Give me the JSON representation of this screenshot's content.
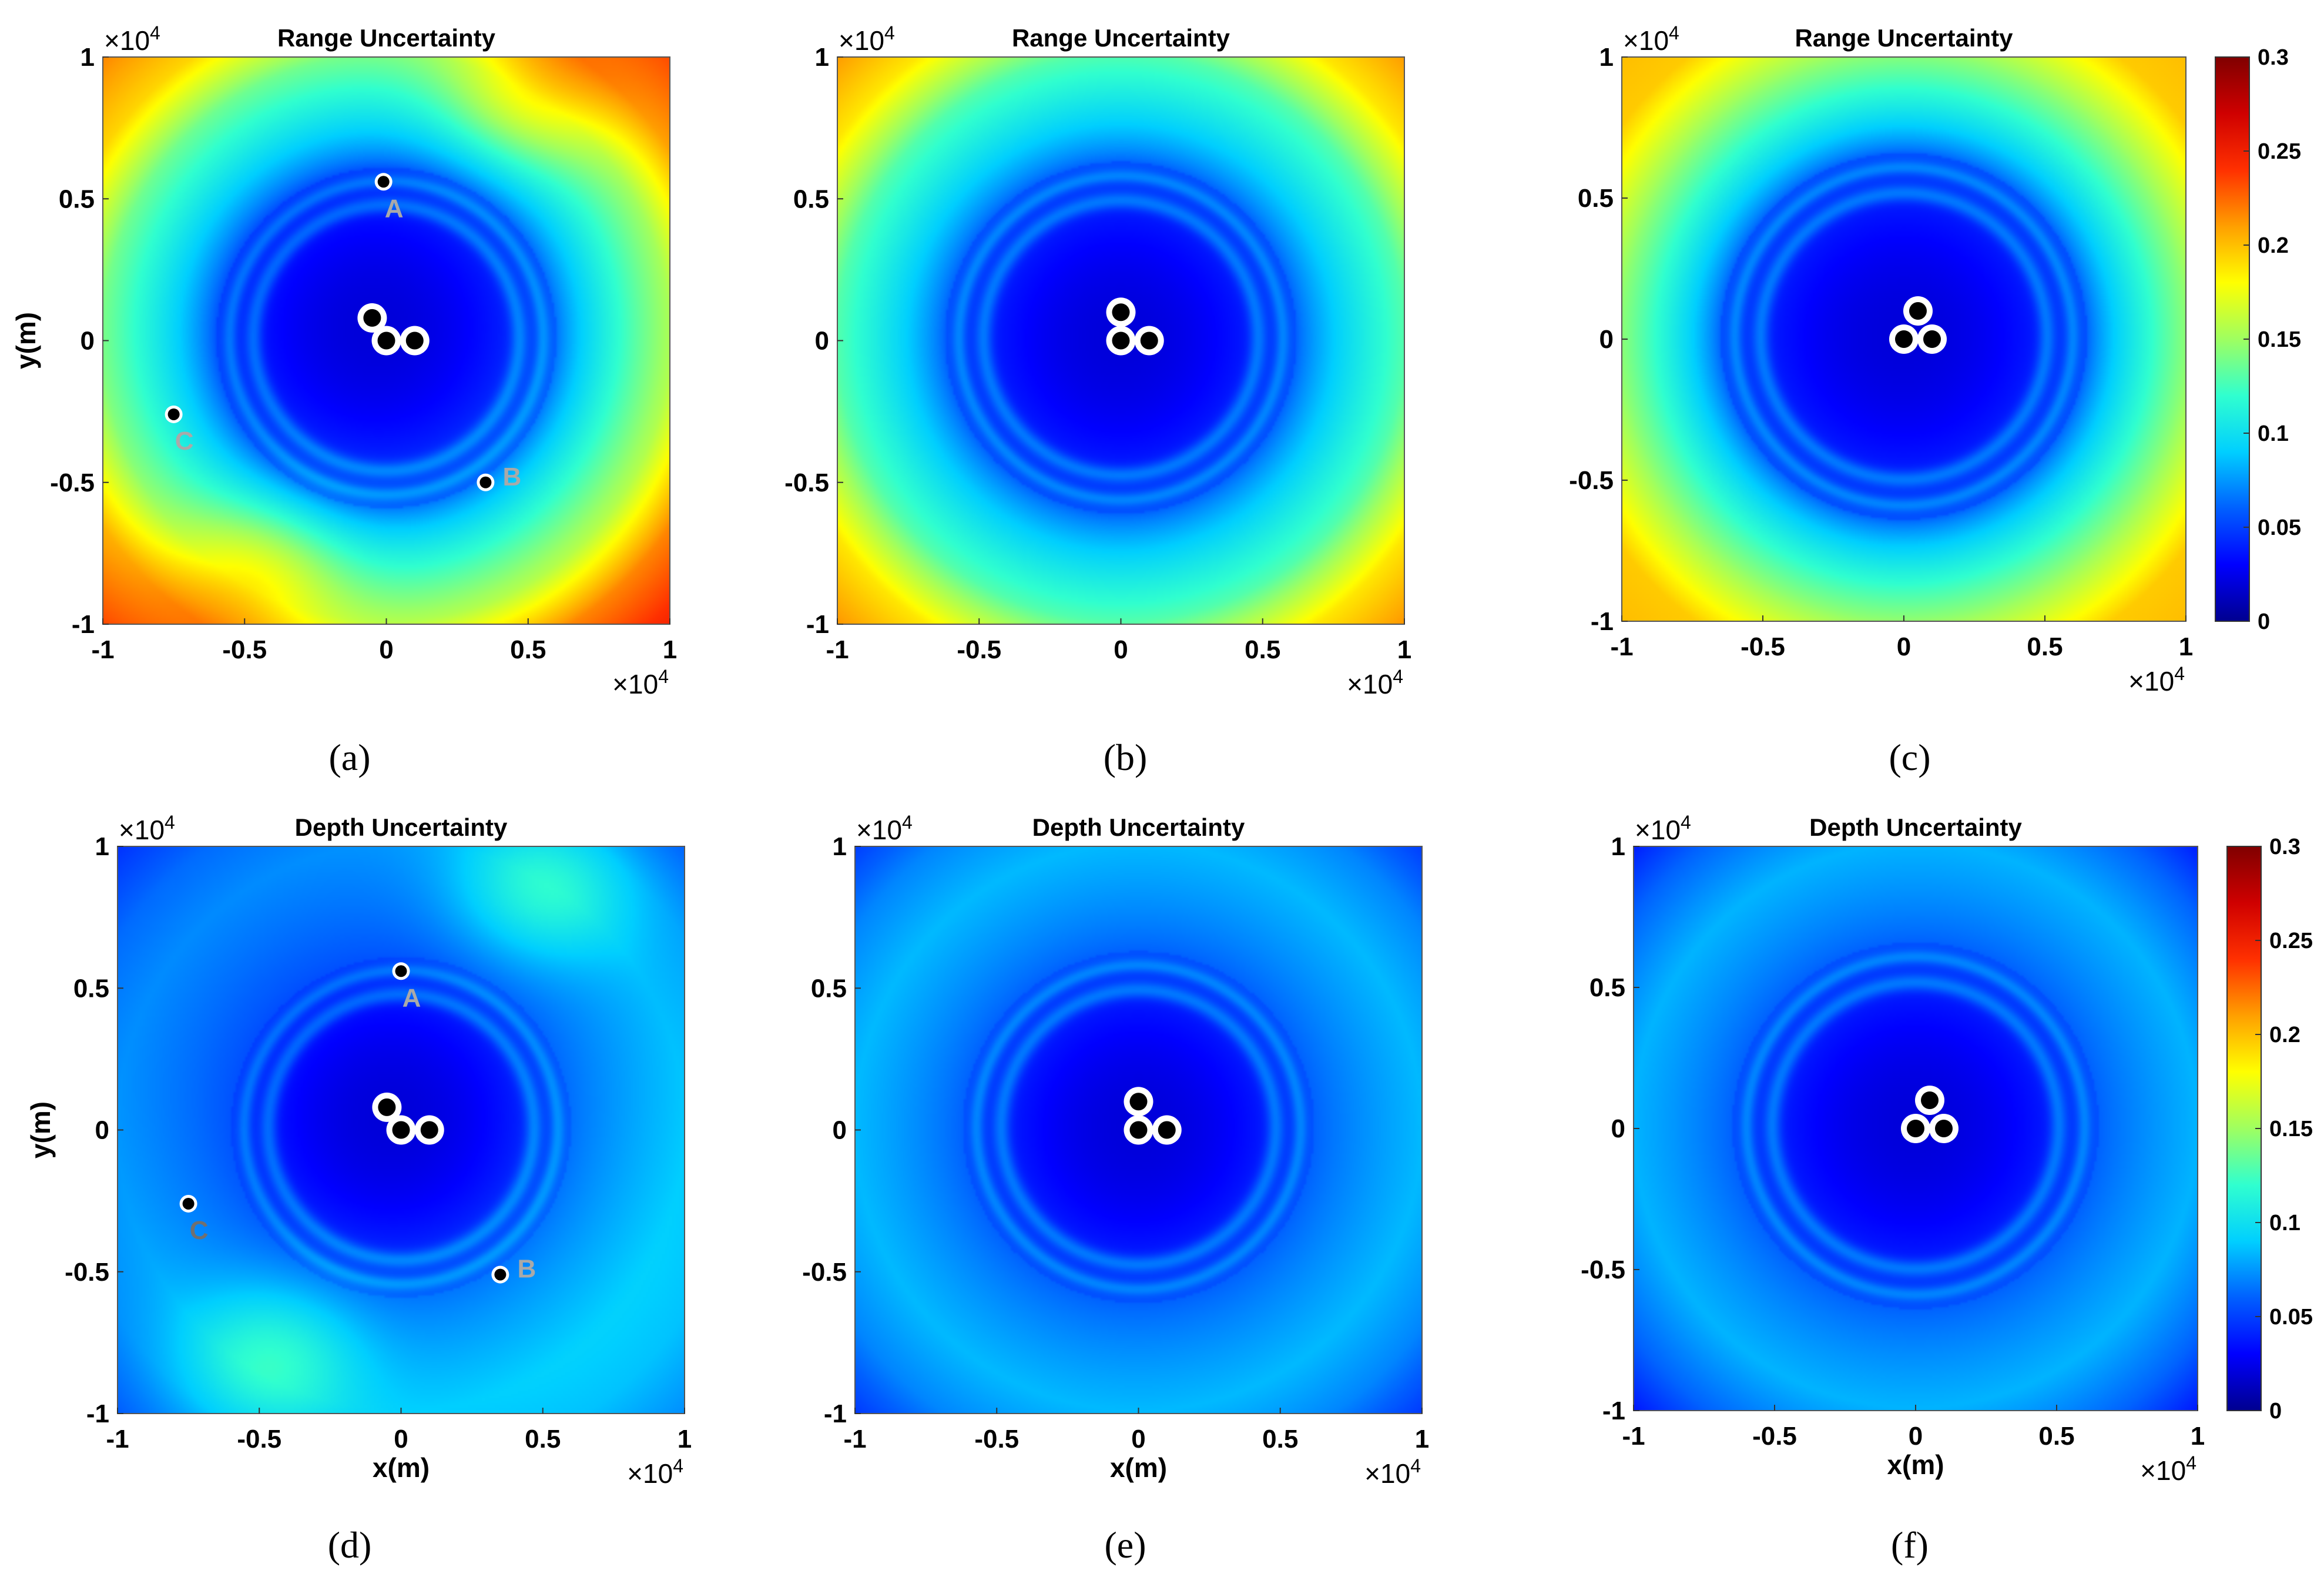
{
  "figure": {
    "colormap": [
      "#00008f",
      "#0000ff",
      "#0060ff",
      "#00cfff",
      "#30ffcf",
      "#9fff60",
      "#ffff00",
      "#ff9f00",
      "#ff3000",
      "#cf0000",
      "#800000"
    ],
    "colors": {
      "frame": "#000000",
      "marker_fill": "#000000",
      "marker_ring": "#ffffff",
      "label_a": "#a9a9a9",
      "label_c": "#707070"
    }
  },
  "chart_data": [
    {
      "type": "heatmap",
      "panel": "a",
      "caption": "(a)",
      "title": "Range Uncertainty",
      "xlabel": "",
      "ylabel": "y(m)",
      "xlim": [
        -10000,
        10000
      ],
      "ylim": [
        -10000,
        10000
      ],
      "x_ticks": [
        -1,
        -0.5,
        0,
        0.5,
        1
      ],
      "x_tick_labels": [
        "-1",
        "-0.5",
        "0",
        "0.5",
        "1"
      ],
      "y_ticks": [
        -1,
        -0.5,
        0,
        0.5,
        1
      ],
      "y_tick_labels": [
        "-1",
        "-0.5",
        "0",
        "0.5",
        "1"
      ],
      "x_multiplier": "×10",
      "x_exponent": "4",
      "y_multiplier": "×10",
      "y_exponent": "4",
      "color_range": [
        0,
        0.3
      ],
      "field": {
        "outer": 0.18,
        "corner": 0.23,
        "core": 0.02,
        "core_radius": 6000,
        "asym": true
      },
      "sensors": [
        [
          -500,
          800
        ],
        [
          0,
          0
        ],
        [
          1000,
          0
        ]
      ],
      "points": [
        {
          "name": "A",
          "x": -100,
          "y": 5600,
          "label": "A"
        },
        {
          "name": "B",
          "x": 3500,
          "y": -5000,
          "label": "B"
        },
        {
          "name": "C",
          "x": -7500,
          "y": -2600,
          "label": "C"
        }
      ]
    },
    {
      "type": "heatmap",
      "panel": "b",
      "caption": "(b)",
      "title": "Range Uncertainty",
      "xlabel": "",
      "ylabel": "",
      "xlim": [
        -10000,
        10000
      ],
      "ylim": [
        -10000,
        10000
      ],
      "x_ticks": [
        -1,
        -0.5,
        0,
        0.5,
        1
      ],
      "x_tick_labels": [
        "-1",
        "-0.5",
        "0",
        "0.5",
        "1"
      ],
      "y_ticks": [
        -1,
        -0.5,
        0,
        0.5,
        1
      ],
      "y_tick_labels": [
        "-1",
        "-0.5",
        "0",
        "0.5",
        "1"
      ],
      "x_multiplier": "×10",
      "x_exponent": "4",
      "y_multiplier": "×10",
      "y_exponent": "4",
      "color_range": [
        0,
        0.3
      ],
      "field": {
        "outer": 0.16,
        "corner": 0.21,
        "core": 0.02,
        "core_radius": 6200,
        "asym": false
      },
      "sensors": [
        [
          0,
          1000
        ],
        [
          0,
          0
        ],
        [
          1000,
          0
        ]
      ],
      "points": []
    },
    {
      "type": "heatmap",
      "panel": "c",
      "caption": "(c)",
      "title": "Range Uncertainty",
      "xlabel": "",
      "ylabel": "",
      "xlim": [
        -10000,
        10000
      ],
      "ylim": [
        -10000,
        10000
      ],
      "x_ticks": [
        -1,
        -0.5,
        0,
        0.5,
        1
      ],
      "x_tick_labels": [
        "-1",
        "-0.5",
        "0",
        "0.5",
        "1"
      ],
      "y_ticks": [
        -1,
        -0.5,
        0,
        0.5,
        1
      ],
      "y_tick_labels": [
        "-1",
        "-0.5",
        "0",
        "0.5",
        "1"
      ],
      "x_multiplier": "×10",
      "x_exponent": "4",
      "y_multiplier": "×10",
      "y_exponent": "4",
      "color_range": [
        0,
        0.3
      ],
      "field": {
        "outer": 0.19,
        "corner": 0.2,
        "core": 0.02,
        "core_radius": 6500,
        "asym": false
      },
      "sensors": [
        [
          500,
          1000
        ],
        [
          0,
          0
        ],
        [
          1000,
          0
        ]
      ],
      "points": [],
      "colorbar": {
        "ticks": [
          0,
          0.05,
          0.1,
          0.15,
          0.2,
          0.25,
          0.3
        ],
        "tick_labels": [
          "0",
          "0.05",
          "0.1",
          "0.15",
          "0.2",
          "0.25",
          "0.3"
        ]
      }
    },
    {
      "type": "heatmap",
      "panel": "d",
      "caption": "(d)",
      "title": "Depth Uncertainty",
      "xlabel": "x(m)",
      "ylabel": "y(m)",
      "xlim": [
        -10000,
        10000
      ],
      "ylim": [
        -10000,
        10000
      ],
      "x_ticks": [
        -1,
        -0.5,
        0,
        0.5,
        1
      ],
      "x_tick_labels": [
        "-1",
        "-0.5",
        "0",
        "0.5",
        "1"
      ],
      "y_ticks": [
        -1,
        -0.5,
        0,
        0.5,
        1
      ],
      "y_tick_labels": [
        "-1",
        "-0.5",
        "0",
        "0.5",
        "1"
      ],
      "x_multiplier": "×10",
      "x_exponent": "4",
      "y_multiplier": "×10",
      "y_exponent": "4",
      "color_range": [
        0,
        0.3
      ],
      "field": {
        "outer": 0.09,
        "corner": 0.06,
        "core": 0.02,
        "core_radius": 6000,
        "asym": true
      },
      "sensors": [
        [
          -500,
          800
        ],
        [
          0,
          0
        ],
        [
          1000,
          0
        ]
      ],
      "points": [
        {
          "name": "A",
          "x": 0,
          "y": 5600,
          "label": "A"
        },
        {
          "name": "B",
          "x": 3500,
          "y": -5100,
          "label": "B"
        },
        {
          "name": "C",
          "x": -7500,
          "y": -2600,
          "label": "C"
        }
      ]
    },
    {
      "type": "heatmap",
      "panel": "e",
      "caption": "(e)",
      "title": "Depth Uncertainty",
      "xlabel": "x(m)",
      "ylabel": "",
      "xlim": [
        -10000,
        10000
      ],
      "ylim": [
        -10000,
        10000
      ],
      "x_ticks": [
        -1,
        -0.5,
        0,
        0.5,
        1
      ],
      "x_tick_labels": [
        "-1",
        "-0.5",
        "0",
        "0.5",
        "1"
      ],
      "y_ticks": [
        -1,
        -0.5,
        0,
        0.5,
        1
      ],
      "y_tick_labels": [
        "-1",
        "-0.5",
        "0",
        "0.5",
        "1"
      ],
      "x_multiplier": "×10",
      "x_exponent": "4",
      "y_multiplier": "×10",
      "y_exponent": "4",
      "color_range": [
        0,
        0.3
      ],
      "field": {
        "outer": 0.095,
        "corner": 0.05,
        "core": 0.02,
        "core_radius": 6200,
        "asym": false
      },
      "sensors": [
        [
          0,
          1000
        ],
        [
          0,
          0
        ],
        [
          1000,
          0
        ]
      ],
      "points": []
    },
    {
      "type": "heatmap",
      "panel": "f",
      "caption": "(f)",
      "title": "Depth Uncertainty",
      "xlabel": "x(m)",
      "ylabel": "",
      "xlim": [
        -10000,
        10000
      ],
      "ylim": [
        -10000,
        10000
      ],
      "x_ticks": [
        -1,
        -0.5,
        0,
        0.5,
        1
      ],
      "x_tick_labels": [
        "-1",
        "-0.5",
        "0",
        "0.5",
        "1"
      ],
      "y_ticks": [
        -1,
        -0.5,
        0,
        0.5,
        1
      ],
      "y_tick_labels": [
        "-1",
        "-0.5",
        "0",
        "0.5",
        "1"
      ],
      "x_multiplier": "×10",
      "x_exponent": "4",
      "y_multiplier": "×10",
      "y_exponent": "4",
      "color_range": [
        0,
        0.3
      ],
      "field": {
        "outer": 0.095,
        "corner": 0.04,
        "core": 0.02,
        "core_radius": 6500,
        "asym": false
      },
      "sensors": [
        [
          500,
          1000
        ],
        [
          0,
          0
        ],
        [
          1000,
          0
        ]
      ],
      "points": [],
      "colorbar": {
        "ticks": [
          0,
          0.05,
          0.1,
          0.15,
          0.2,
          0.25,
          0.3
        ],
        "tick_labels": [
          "0",
          "0.05",
          "0.1",
          "0.15",
          "0.2",
          "0.25",
          "0.3"
        ]
      }
    }
  ]
}
